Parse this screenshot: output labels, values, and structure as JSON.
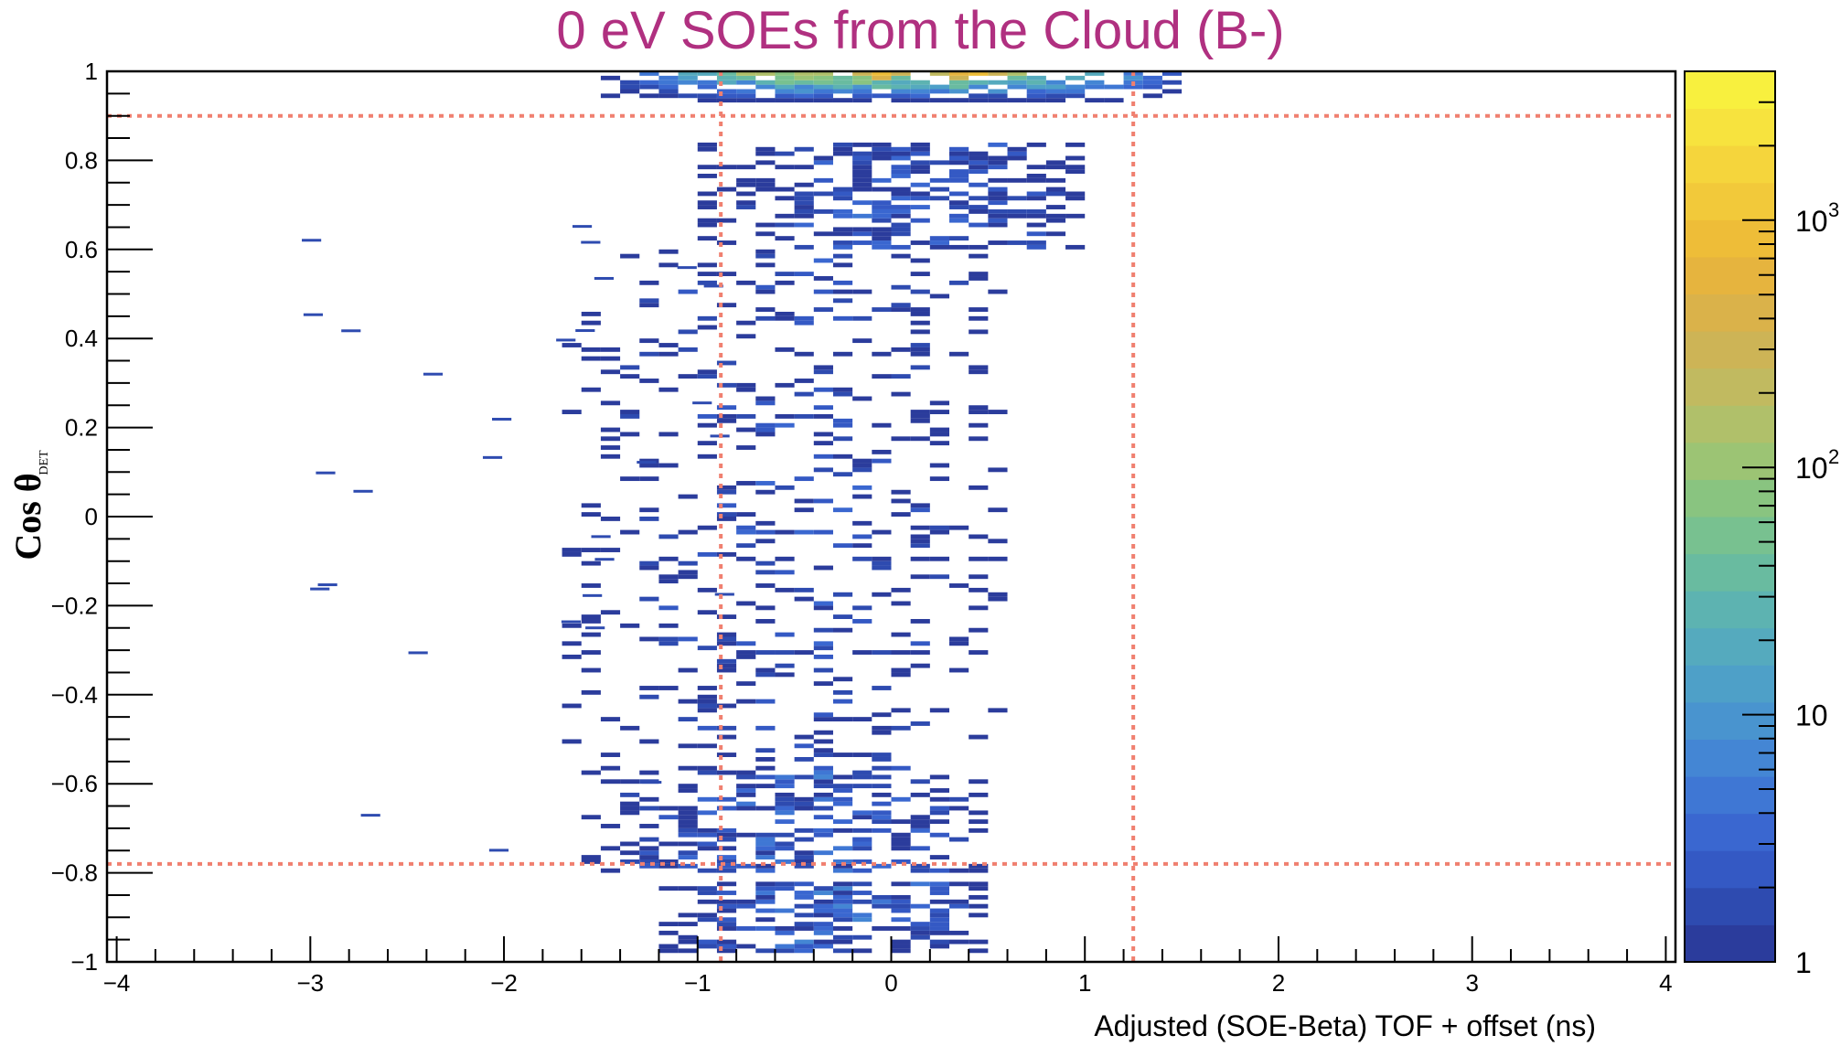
{
  "chart_data": {
    "type": "heatmap",
    "title": "0 eV SOEs from the Cloud (B-)",
    "xlabel": "Adjusted (SOE-Beta) TOF + offset (ns)",
    "ylabel_main": "Cos θ",
    "ylabel_sub": "DET",
    "xlim": [
      -4.05,
      4.05
    ],
    "ylim": [
      -1,
      1
    ],
    "x_ticks": [
      -4,
      -3,
      -2,
      -1,
      0,
      1,
      2,
      3,
      4
    ],
    "x_tick_labels": [
      "−4",
      "−3",
      "−2",
      "−1",
      "0",
      "1",
      "2",
      "3",
      "4"
    ],
    "y_ticks": [
      1,
      0.8,
      0.6,
      0.4,
      0.2,
      0,
      -0.2,
      -0.4,
      -0.6,
      -0.8,
      -1
    ],
    "y_tick_labels": [
      "1",
      "0.8",
      "0.6",
      "0.4",
      "0.2",
      "0",
      "−0.2",
      "−0.4",
      "−0.6",
      "−0.8",
      "−1"
    ],
    "colorbar": {
      "scale": "log",
      "range": [
        1,
        4000
      ],
      "labels": [
        {
          "value": 1,
          "base": "1",
          "exp": ""
        },
        {
          "value": 10,
          "base": "10",
          "exp": ""
        },
        {
          "value": 100,
          "base": "10",
          "exp": "2"
        },
        {
          "value": 1000,
          "base": "10",
          "exp": "3"
        }
      ],
      "palette": [
        "#2b3c9c",
        "#2e4bb0",
        "#3459c4",
        "#3a67d0",
        "#3f77d4",
        "#4486d4",
        "#4994cf",
        "#4ea0c8",
        "#55aabe",
        "#5db3b1",
        "#69bba0",
        "#78c190",
        "#89c480",
        "#9cc474",
        "#b0c06a",
        "#c1ba60",
        "#cdb456",
        "#dab24a",
        "#e6b43e",
        "#eebd38",
        "#f2c93a",
        "#f5d53c",
        "#f7e33e",
        "#f8f03e"
      ]
    },
    "cut_lines": {
      "color": "#f08070",
      "x": [
        -0.88,
        1.25
      ],
      "y": [
        0.9,
        -0.78
      ]
    },
    "regions": [
      {
        "x": [
          -1.5,
          1.5
        ],
        "y": [
          0.93,
          1.0
        ],
        "density": 0.85,
        "peak": 3000
      },
      {
        "x": [
          -1.0,
          1.0
        ],
        "y": [
          0.6,
          0.84
        ],
        "density": 0.55,
        "peak": 5
      },
      {
        "x": [
          -1.2,
          0.5
        ],
        "y": [
          -0.98,
          -0.82
        ],
        "density": 0.6,
        "peak": 8
      },
      {
        "x": [
          -1.6,
          0.5
        ],
        "y": [
          -0.8,
          -0.56
        ],
        "density": 0.5,
        "peak": 6
      },
      {
        "x": [
          -1.7,
          0.6
        ],
        "y": [
          -0.55,
          0.6
        ],
        "density": 0.18,
        "peak": 3
      }
    ]
  }
}
